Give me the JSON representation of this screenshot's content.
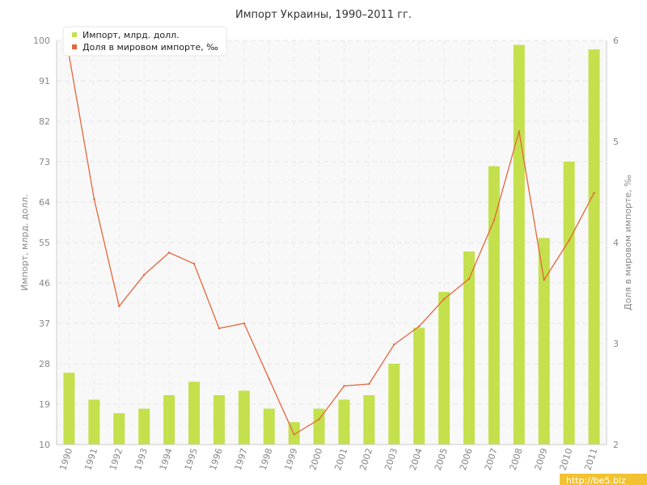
{
  "chart_data": {
    "type": "bar",
    "title": "Импорт Украины, 1990–2011 гг.",
    "categories": [
      "1990",
      "1991",
      "1992",
      "1993",
      "1994",
      "1995",
      "1996",
      "1997",
      "1998",
      "1999",
      "2000",
      "2001",
      "2002",
      "2003",
      "2004",
      "2005",
      "2006",
      "2007",
      "2008",
      "2009",
      "2010",
      "2011"
    ],
    "series": [
      {
        "name": "Импорт, млрд. долл.",
        "type": "bar",
        "axis": "left",
        "color": "#c4e04c",
        "values": [
          26,
          20,
          17,
          18,
          21,
          24,
          21,
          22,
          18,
          15,
          18,
          20,
          21,
          28,
          36,
          44,
          53,
          72,
          99,
          56,
          73,
          98
        ]
      },
      {
        "name": "Доля в мировом импорте, ‰",
        "type": "line",
        "axis": "right",
        "color": "#e4663c",
        "values": [
          5.85,
          4.43,
          3.37,
          3.68,
          3.9,
          3.79,
          3.15,
          3.2,
          2.65,
          2.1,
          2.25,
          2.58,
          2.6,
          2.99,
          3.17,
          3.44,
          3.64,
          4.22,
          5.1,
          3.63,
          4.02,
          4.49
        ]
      }
    ],
    "xlabel": "",
    "ylabel": "Импорт, млрд. долл.",
    "ylabel_right": "Доля в мировом импорте, ‰",
    "ylim": [
      10,
      100
    ],
    "yticks": [
      10,
      19,
      28,
      37,
      46,
      55,
      64,
      73,
      82,
      91,
      100
    ],
    "ylim_right": [
      2,
      6
    ],
    "yticks_right": [
      2,
      3,
      4,
      5,
      6
    ],
    "grid": true,
    "legend_position": "top-left",
    "credit": "http://be5.biz"
  }
}
